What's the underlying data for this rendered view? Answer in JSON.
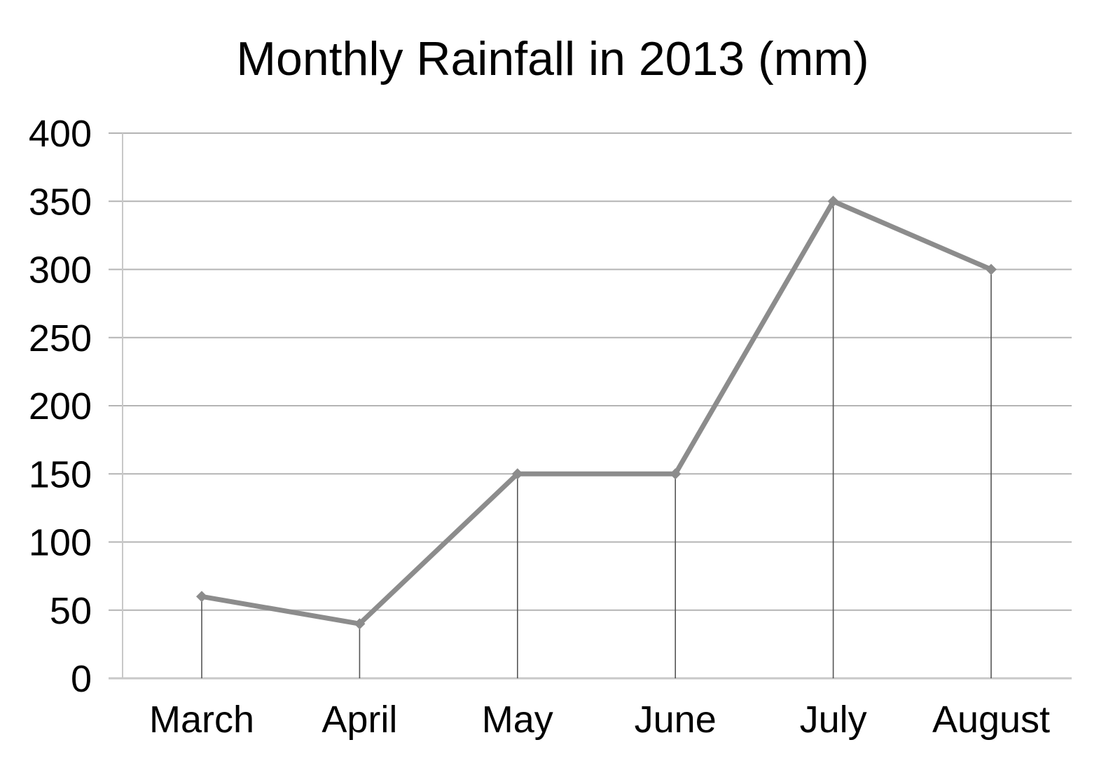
{
  "chart_data": {
    "type": "line",
    "title": "Monthly Rainfall in 2013 (mm)",
    "xlabel": "",
    "ylabel": "",
    "categories": [
      "March",
      "April",
      "May",
      "June",
      "July",
      "August"
    ],
    "series": [
      {
        "values": [
          60,
          40,
          150,
          150,
          350,
          300
        ]
      }
    ],
    "ylim": [
      0,
      400
    ],
    "yticks": [
      0,
      50,
      100,
      150,
      200,
      250,
      300,
      350,
      400
    ],
    "ytick_labels": [
      "0",
      "50",
      "100",
      "150",
      "200",
      "250",
      "300",
      "350",
      "400"
    ],
    "grid": true,
    "drop_lines": true,
    "legend": "none",
    "colors": {
      "line": "#8c8c8c",
      "marker": "#8c8c8c",
      "drop_line": "#555555",
      "gridline": "#b4b4b4",
      "axis": "#c8c8c8"
    }
  }
}
